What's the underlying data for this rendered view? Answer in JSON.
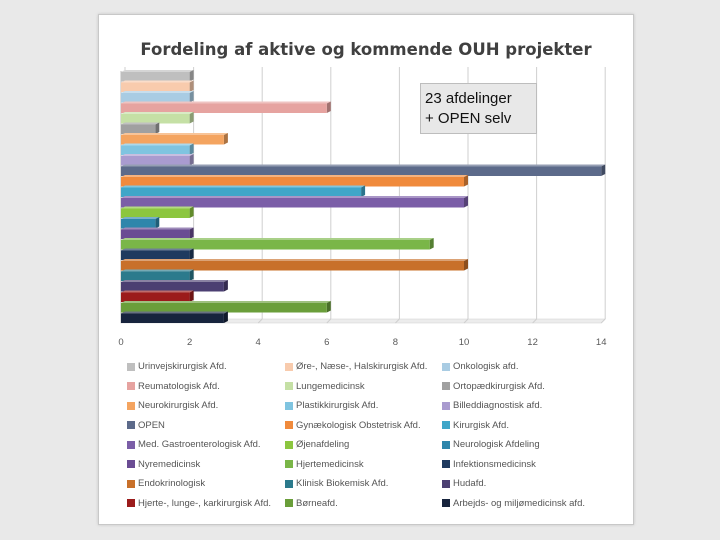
{
  "chart_data": {
    "type": "bar",
    "orientation": "horizontal",
    "title": "Fordeling af aktive og kommende OUH projekter",
    "xlim": [
      0,
      14
    ],
    "xticks": [
      "0",
      "2",
      "4",
      "6",
      "8",
      "10",
      "12",
      "14"
    ],
    "grid": true,
    "legend_position": "bottom",
    "annotation": [
      "23 afdelinger",
      "+ OPEN selv"
    ],
    "series": [
      {
        "name": "Urinvejskirurgisk Afd.",
        "value": 2,
        "color": "#bfbfbf"
      },
      {
        "name": "Øre-, Næse-, Halskirurgisk Afd.",
        "value": 2,
        "color": "#f8cbad"
      },
      {
        "name": "Onkologisk afd.",
        "value": 2,
        "color": "#a9cce3"
      },
      {
        "name": "Reumatologisk Afd.",
        "value": 6,
        "color": "#e6a3a0"
      },
      {
        "name": "Lungemedicinsk",
        "value": 2,
        "color": "#c5e0a5"
      },
      {
        "name": "Ortopædkirurgisk Afd.",
        "value": 1,
        "color": "#a0a0a0"
      },
      {
        "name": "Neurokirurgisk Afd.",
        "value": 3,
        "color": "#f4a460"
      },
      {
        "name": "Plastikkirurgisk Afd.",
        "value": 2,
        "color": "#7fc4e0"
      },
      {
        "name": "Billeddiagnostisk afd.",
        "value": 2,
        "color": "#a99bcf"
      },
      {
        "name": "OPEN",
        "value": 14,
        "color": "#5c6a8a"
      },
      {
        "name": "Gynækologisk Obstetrisk Afd.",
        "value": 10,
        "color": "#f08a3c"
      },
      {
        "name": "Kirurgisk Afd.",
        "value": 7,
        "color": "#3fa6c8"
      },
      {
        "name": "Med. Gastroenterologisk Afd.",
        "value": 10,
        "color": "#7b5ea7"
      },
      {
        "name": "Øjenafdeling",
        "value": 2,
        "color": "#8cc63f"
      },
      {
        "name": "Neurologisk Afdeling",
        "value": 1,
        "color": "#2e86ab"
      },
      {
        "name": "Nyremedicinsk",
        "value": 2,
        "color": "#6a4c93"
      },
      {
        "name": "Hjertemedicinsk",
        "value": 9,
        "color": "#7ab648"
      },
      {
        "name": "Infektionsmedicinsk",
        "value": 2,
        "color": "#1f3a5f"
      },
      {
        "name": "Endokrinologisk",
        "value": 10,
        "color": "#c8702a"
      },
      {
        "name": "Klinisk Biokemisk Afd.",
        "value": 2,
        "color": "#2b7a8c"
      },
      {
        "name": "Hudafd.",
        "value": 3,
        "color": "#4b3f72"
      },
      {
        "name": "Hjerte-, lunge-, karkirurgisk Afd.",
        "value": 2,
        "color": "#9b1b1b"
      },
      {
        "name": "Børneafd.",
        "value": 6,
        "color": "#6a9e3a"
      },
      {
        "name": "Arbejds- og miljømedicinsk afd.",
        "value": 3,
        "color": "#17243d"
      }
    ]
  }
}
